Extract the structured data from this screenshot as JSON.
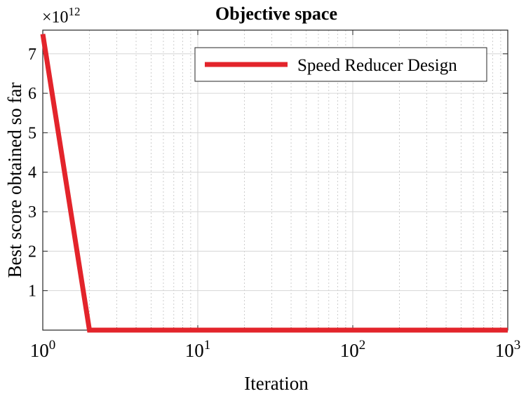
{
  "chart_data": {
    "type": "line",
    "title": "Objective space",
    "xlabel": "Iteration",
    "ylabel": "Best score obtained so far",
    "xscale": "log",
    "xlim": [
      1,
      1000
    ],
    "ylim": [
      0,
      7.6
    ],
    "y_exponent_label": "×10",
    "y_exponent": "12",
    "x_ticks": [
      {
        "base": "10",
        "exp": "0",
        "value": 1
      },
      {
        "base": "10",
        "exp": "1",
        "value": 10
      },
      {
        "base": "10",
        "exp": "2",
        "value": 100
      },
      {
        "base": "10",
        "exp": "3",
        "value": 1000
      }
    ],
    "y_ticks": [
      {
        "label": "1",
        "value": 1
      },
      {
        "label": "2",
        "value": 2
      },
      {
        "label": "3",
        "value": 3
      },
      {
        "label": "4",
        "value": 4
      },
      {
        "label": "5",
        "value": 5
      },
      {
        "label": "6",
        "value": 6
      },
      {
        "label": "7",
        "value": 7
      }
    ],
    "grid": true,
    "legend_position": "top-right",
    "series": [
      {
        "name": "Speed Reducer Design",
        "color": "#e3242b",
        "x": [
          1,
          2,
          3,
          5,
          10,
          20,
          50,
          100,
          200,
          500,
          1000
        ],
        "y": [
          7.5,
          0.0003,
          0.0003,
          0.0003,
          0.0003,
          0.0003,
          0.0003,
          0.0003,
          0.0003,
          0.0003,
          0.0003
        ]
      }
    ]
  }
}
